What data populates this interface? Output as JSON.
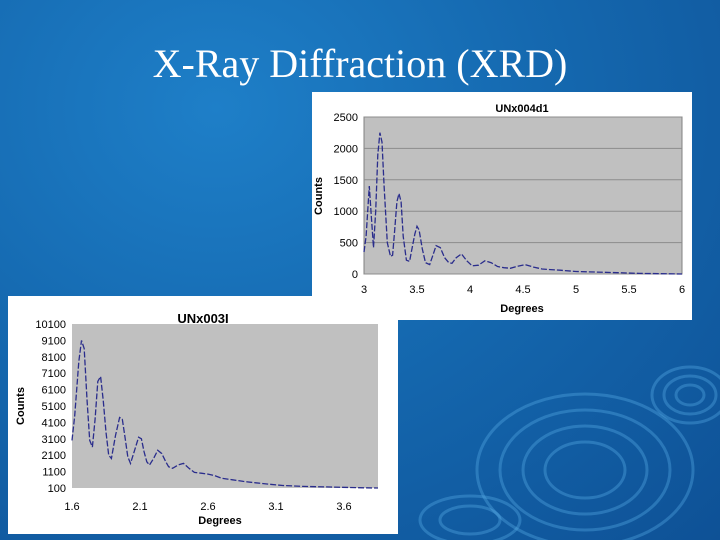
{
  "slide": {
    "title": "X-Ray Diffraction (XRD)"
  },
  "colors": {
    "plot_bg": "#c0c0c0",
    "line": "#2a2d8c",
    "grid": "#8c8c8c",
    "background": "#1569b0"
  },
  "chart_data": [
    {
      "type": "line",
      "title": "UNx004d1",
      "xlabel": "Degrees",
      "ylabel": "Counts",
      "xlim": [
        3,
        6
      ],
      "ylim": [
        0,
        2500
      ],
      "x_ticks": [
        "3",
        "3.5",
        "4",
        "4.5",
        "5",
        "5.5",
        "6"
      ],
      "y_ticks": [
        "0",
        "500",
        "1000",
        "1500",
        "2000",
        "2500"
      ],
      "grid": true,
      "series": [
        {
          "x": [
            3.0,
            3.02,
            3.05,
            3.07,
            3.09,
            3.11,
            3.13,
            3.15,
            3.17,
            3.19,
            3.22,
            3.25,
            3.27,
            3.29,
            3.31,
            3.33,
            3.35,
            3.37,
            3.4,
            3.43,
            3.45,
            3.48,
            3.5,
            3.52,
            3.55,
            3.58,
            3.62,
            3.65,
            3.68,
            3.72,
            3.76,
            3.8,
            3.83,
            3.87,
            3.92,
            3.97,
            4.02,
            4.08,
            4.14,
            4.2,
            4.26,
            4.32,
            4.38,
            4.44,
            4.52,
            4.6,
            4.68,
            4.76,
            4.85,
            5.0,
            5.2,
            5.4,
            5.6,
            5.8,
            6.0
          ],
          "y": [
            350,
            600,
            1400,
            900,
            420,
            1000,
            1900,
            2250,
            2100,
            1400,
            500,
            280,
            300,
            700,
            1150,
            1280,
            1150,
            600,
            220,
            200,
            380,
            640,
            760,
            700,
            400,
            180,
            150,
            300,
            450,
            420,
            260,
            180,
            170,
            260,
            320,
            210,
            130,
            140,
            210,
            180,
            120,
            100,
            90,
            120,
            150,
            110,
            80,
            70,
            60,
            40,
            30,
            20,
            10,
            5,
            0
          ]
        }
      ]
    },
    {
      "type": "line",
      "title": "UNx003I",
      "xlabel": "Degrees",
      "ylabel": "Counts",
      "xlim": [
        1.6,
        3.85
      ],
      "ylim": [
        100,
        10100
      ],
      "x_ticks": [
        "1.6",
        "2.1",
        "2.6",
        "3.1",
        "3.6"
      ],
      "y_ticks": [
        "100",
        "1100",
        "2100",
        "3100",
        "4100",
        "5100",
        "6100",
        "7100",
        "8100",
        "9100",
        "10100"
      ],
      "grid": false,
      "series": [
        {
          "x": [
            1.6,
            1.62,
            1.65,
            1.67,
            1.69,
            1.71,
            1.73,
            1.75,
            1.77,
            1.79,
            1.81,
            1.83,
            1.85,
            1.87,
            1.89,
            1.92,
            1.95,
            1.97,
            1.99,
            2.01,
            2.03,
            2.06,
            2.09,
            2.11,
            2.13,
            2.15,
            2.17,
            2.2,
            2.23,
            2.26,
            2.29,
            2.31,
            2.34,
            2.38,
            2.42,
            2.46,
            2.5,
            2.55,
            2.6,
            2.65,
            2.7,
            2.78,
            2.86,
            2.95,
            3.05,
            3.15,
            3.3,
            3.5,
            3.7,
            3.85
          ],
          "y": [
            3000,
            4500,
            7800,
            9100,
            8600,
            5500,
            3000,
            2600,
            4300,
            6600,
            6900,
            5400,
            3500,
            2100,
            1900,
            3300,
            4400,
            4300,
            3200,
            2000,
            1600,
            2400,
            3200,
            3100,
            2300,
            1700,
            1500,
            1900,
            2400,
            2200,
            1700,
            1400,
            1300,
            1500,
            1600,
            1300,
            1050,
            1000,
            950,
            850,
            700,
            600,
            500,
            420,
            330,
            250,
            200,
            160,
            120,
            100
          ]
        }
      ]
    }
  ]
}
